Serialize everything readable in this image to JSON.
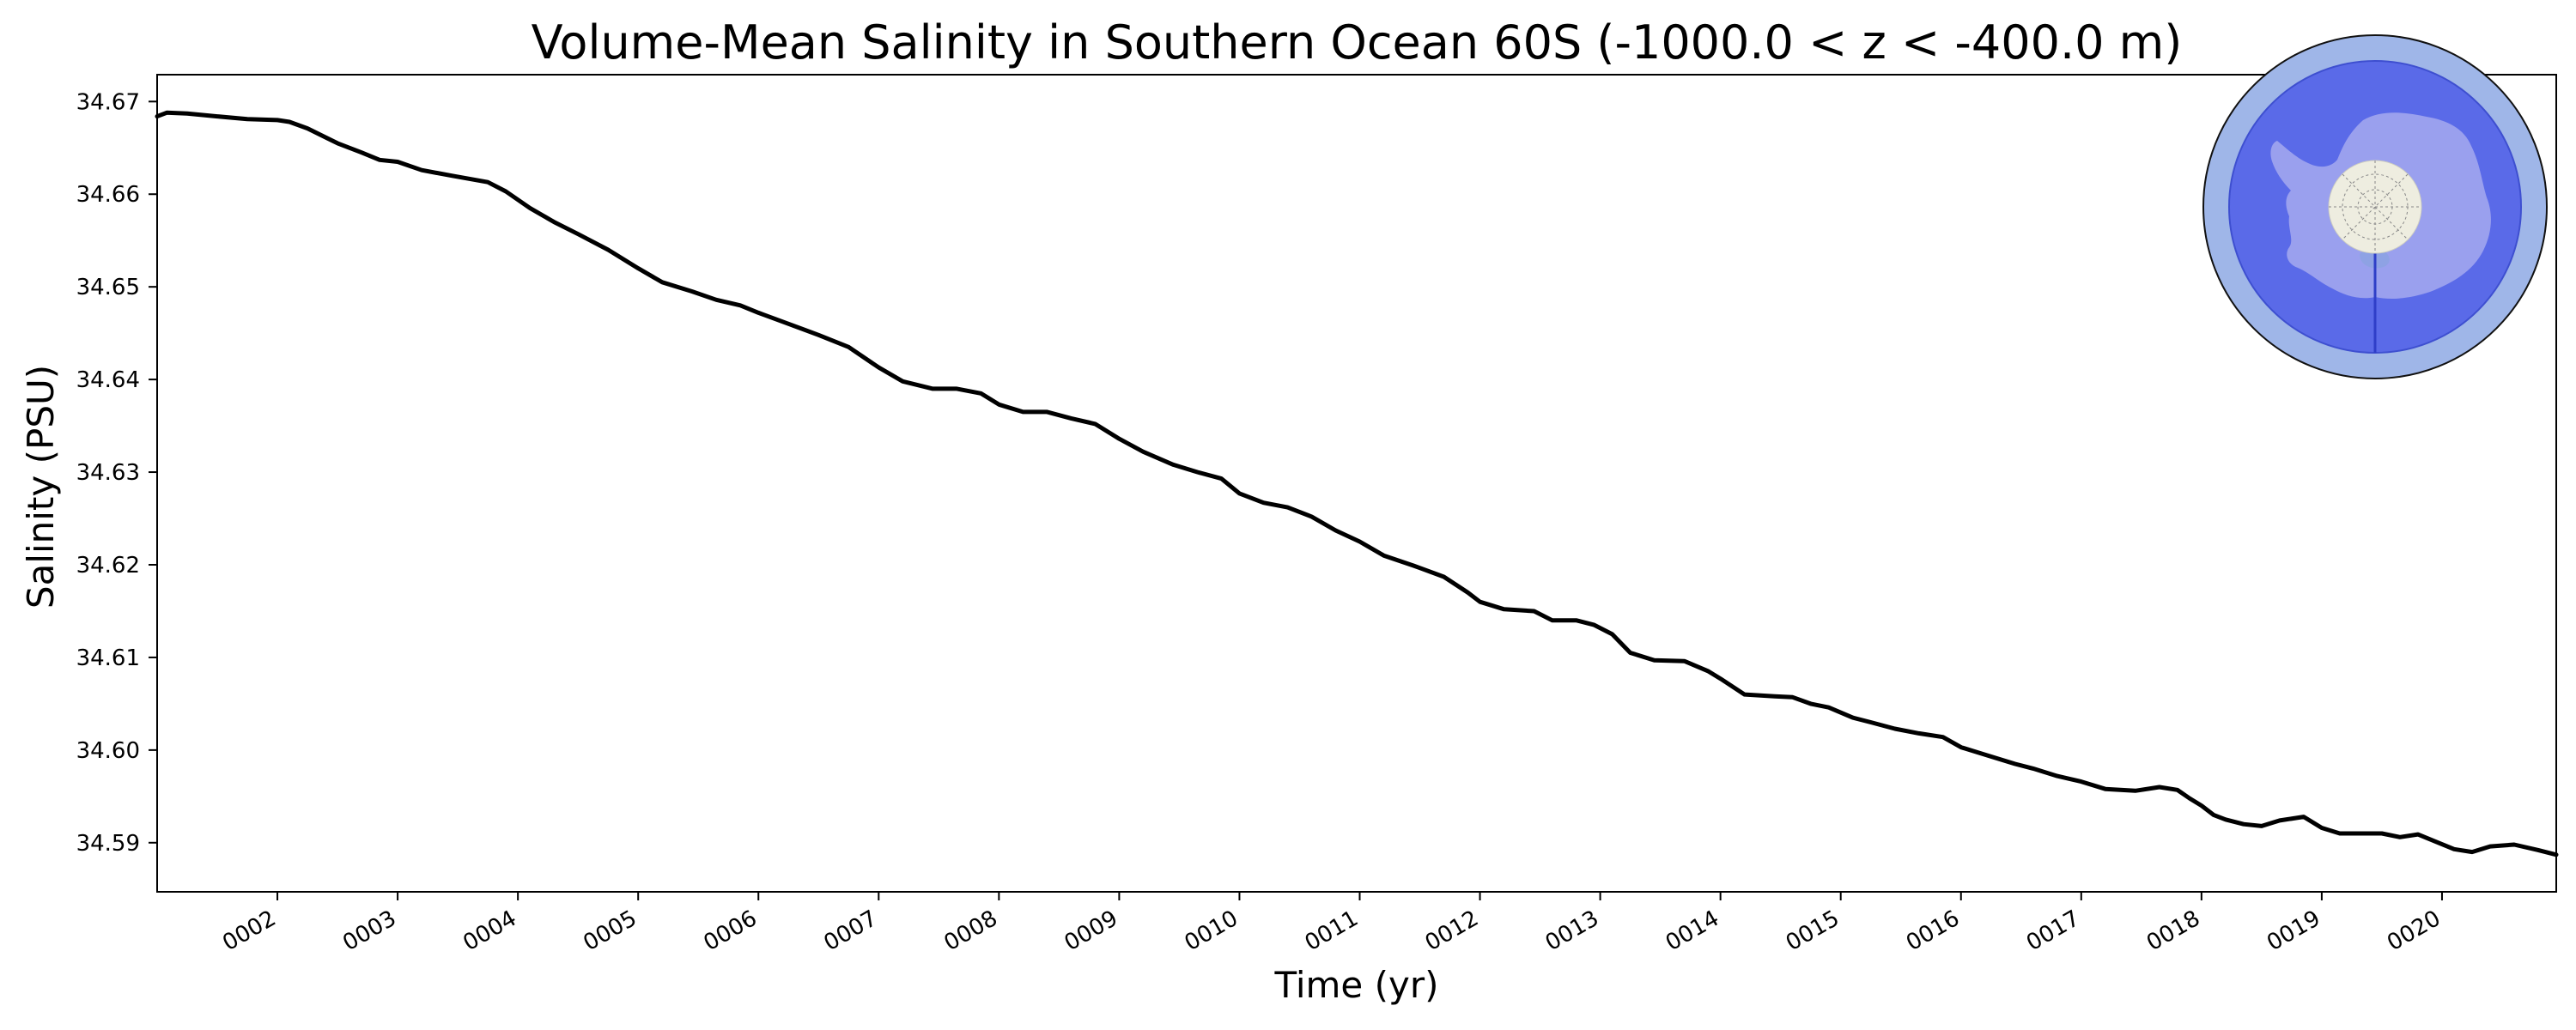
{
  "chart_data": {
    "type": "line",
    "title": "Volume-Mean Salinity in Southern Ocean 60S (-1000.0 < z < -400.0 m)",
    "xlabel": "Time (yr)",
    "ylabel": "Salinity (PSU)",
    "xlim": [
      1.0,
      20.95
    ],
    "ylim": [
      34.5847,
      34.6729
    ],
    "x_ticks": [
      2,
      3,
      4,
      5,
      6,
      7,
      8,
      9,
      10,
      11,
      12,
      13,
      14,
      15,
      16,
      17,
      18,
      19,
      20
    ],
    "x_tick_labels": [
      "0002",
      "0003",
      "0004",
      "0005",
      "0006",
      "0007",
      "0008",
      "0009",
      "0010",
      "0011",
      "0012",
      "0013",
      "0014",
      "0015",
      "0016",
      "0017",
      "0018",
      "0019",
      "0020"
    ],
    "y_ticks": [
      34.59,
      34.6,
      34.61,
      34.62,
      34.63,
      34.64,
      34.65,
      34.66,
      34.67
    ],
    "y_tick_labels": [
      "34.59",
      "34.60",
      "34.61",
      "34.62",
      "34.63",
      "34.64",
      "34.65",
      "34.66",
      "34.67"
    ],
    "grid": false,
    "series": [
      {
        "name": "Salinity",
        "color": "#000000",
        "x": [
          1.0,
          1.08,
          1.25,
          1.5,
          1.75,
          2.0,
          2.1,
          2.25,
          2.5,
          2.7,
          2.85,
          3.0,
          3.2,
          3.45,
          3.75,
          3.9,
          4.1,
          4.3,
          4.5,
          4.75,
          5.0,
          5.2,
          5.45,
          5.65,
          5.85,
          6.0,
          6.25,
          6.5,
          6.75,
          7.0,
          7.2,
          7.45,
          7.65,
          7.85,
          8.0,
          8.2,
          8.4,
          8.6,
          8.8,
          9.0,
          9.2,
          9.45,
          9.65,
          9.85,
          10.0,
          10.2,
          10.4,
          10.6,
          10.8,
          11.0,
          11.2,
          11.45,
          11.7,
          11.9,
          12.0,
          12.2,
          12.45,
          12.6,
          12.8,
          12.95,
          13.1,
          13.25,
          13.45,
          13.7,
          13.9,
          14.0,
          14.2,
          14.45,
          14.6,
          14.75,
          14.9,
          15.1,
          15.25,
          15.45,
          15.65,
          15.85,
          16.0,
          16.2,
          16.45,
          16.6,
          16.8,
          17.0,
          17.2,
          17.45,
          17.65,
          17.8,
          17.9,
          18.0,
          18.1,
          18.2,
          18.35,
          18.5,
          18.65,
          18.85,
          19.0,
          19.15,
          19.3,
          19.5,
          19.65,
          19.8,
          19.95,
          20.1,
          20.25,
          20.4,
          20.6,
          20.8,
          20.95
        ],
        "values": [
          34.6684,
          34.6688,
          34.6687,
          34.6684,
          34.6681,
          34.668,
          34.6678,
          34.6671,
          34.6655,
          34.6645,
          34.6637,
          34.6635,
          34.6626,
          34.662,
          34.6613,
          34.6603,
          34.6585,
          34.657,
          34.6557,
          34.654,
          34.652,
          34.6505,
          34.6495,
          34.6486,
          34.648,
          34.6472,
          34.646,
          34.6448,
          34.6435,
          34.6413,
          34.6398,
          34.639,
          34.639,
          34.6385,
          34.6373,
          34.6365,
          34.6365,
          34.6358,
          34.6352,
          34.6336,
          34.6322,
          34.6308,
          34.63,
          34.6293,
          34.6277,
          34.6267,
          34.6262,
          34.6252,
          34.6237,
          34.6225,
          34.621,
          34.6199,
          34.6187,
          34.617,
          34.616,
          34.6152,
          34.615,
          34.614,
          34.614,
          34.6135,
          34.6125,
          34.6105,
          34.6097,
          34.6096,
          34.6085,
          34.6077,
          34.606,
          34.6058,
          34.6057,
          34.605,
          34.6046,
          34.6035,
          34.603,
          34.6023,
          34.6018,
          34.6014,
          34.6003,
          34.5995,
          34.5985,
          34.598,
          34.5972,
          34.5966,
          34.5958,
          34.5956,
          34.596,
          34.5957,
          34.5948,
          34.594,
          34.593,
          34.5925,
          34.592,
          34.5918,
          34.5924,
          34.5928,
          34.5916,
          34.591,
          34.591,
          34.591,
          34.5906,
          34.5909,
          34.5901,
          34.5893,
          34.589,
          34.5896,
          34.5898,
          34.5892,
          34.5887
        ]
      }
    ]
  },
  "inset_map": {
    "region": "Southern Ocean 60S",
    "ocean_color": "#5a6ae8",
    "outer_ring_color": "#9fb6e8",
    "land_color": "#9aa0ee",
    "pole_disk_color": "#eeede0"
  }
}
